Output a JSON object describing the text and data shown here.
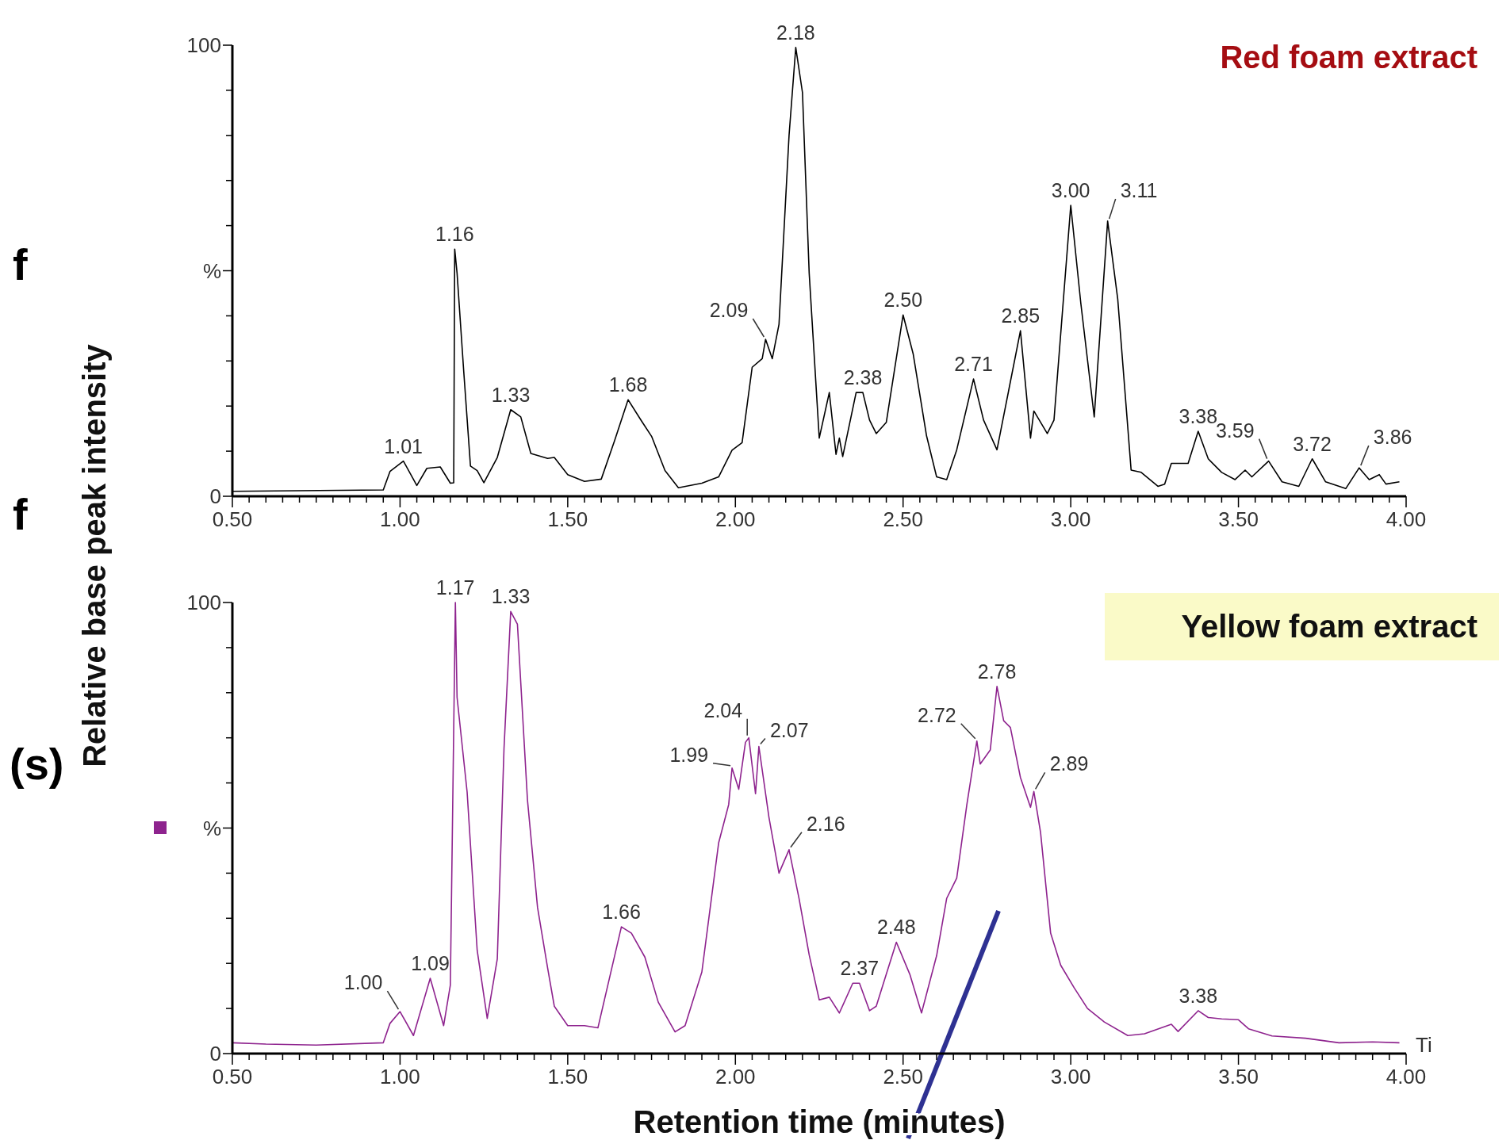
{
  "chart_data": [
    {
      "type": "line",
      "title": "Red foam extract",
      "ylabel": "Relative base peak intensity",
      "series": [
        {
          "color": "#000000",
          "x": [
            0.5,
            0.95,
            0.97,
            1.01,
            1.05,
            1.08,
            1.12,
            1.15,
            1.16,
            1.163,
            1.17,
            1.19,
            1.21,
            1.23,
            1.25,
            1.29,
            1.33,
            1.36,
            1.39,
            1.44,
            1.46,
            1.5,
            1.55,
            1.6,
            1.64,
            1.68,
            1.72,
            1.75,
            1.79,
            1.83,
            1.9,
            1.95,
            1.99,
            2.02,
            2.05,
            2.08,
            2.09,
            2.11,
            2.13,
            2.16,
            2.18,
            2.2,
            2.22,
            2.25,
            2.28,
            2.3,
            2.31,
            2.32,
            2.36,
            2.38,
            2.4,
            2.42,
            2.45,
            2.5,
            2.53,
            2.57,
            2.6,
            2.63,
            2.66,
            2.71,
            2.74,
            2.78,
            2.85,
            2.88,
            2.89,
            2.93,
            2.95,
            3.0,
            3.03,
            3.07,
            3.11,
            3.14,
            3.18,
            3.21,
            3.26,
            3.28,
            3.3,
            3.35,
            3.38,
            3.41,
            3.45,
            3.49,
            3.52,
            3.54,
            3.59,
            3.63,
            3.68,
            3.72,
            3.76,
            3.82,
            3.86,
            3.89,
            3.92,
            3.94,
            3.98
          ],
          "values": [
            1.1,
            1.4,
            5.5,
            7.8,
            2.4,
            6.2,
            6.5,
            2.9,
            3,
            54.8,
            49.5,
            27.6,
            6.7,
            5.7,
            3,
            8.6,
            19.2,
            17.6,
            9.5,
            8.4,
            8.6,
            4.8,
            3.3,
            3.8,
            12.4,
            21.4,
            16.7,
            13.3,
            5.7,
            1.9,
            2.9,
            4.3,
            10.2,
            11.9,
            28.6,
            30.5,
            34.8,
            30.5,
            38.1,
            80,
            99.5,
            89.5,
            49.5,
            12.9,
            23,
            9.3,
            12.9,
            8.8,
            23,
            23,
            16.9,
            13.9,
            16.4,
            40.2,
            31.6,
            13.4,
            4.3,
            3.7,
            10.3,
            26,
            16.9,
            10.3,
            36.7,
            12.9,
            18.9,
            13.9,
            16.9,
            64.5,
            42.8,
            17.6,
            61,
            43.8,
            5.8,
            5.3,
            2.2,
            2.7,
            7.3,
            7.3,
            14.4,
            8.3,
            5.3,
            3.7,
            5.8,
            4.3,
            7.8,
            3.2,
            2.2,
            8.3,
            3.2,
            1.7,
            6.3,
            3.7,
            4.8,
            2.7,
            3.2
          ]
        }
      ],
      "xlim": [
        0.5,
        4.0
      ],
      "ylim": [
        0,
        100
      ],
      "xticks": [
        {
          "value": 0.5,
          "label": "0.50"
        },
        {
          "value": 0.55,
          "label": null
        },
        {
          "value": 0.6,
          "label": null
        },
        {
          "value": 0.65,
          "label": null
        },
        {
          "value": 0.7,
          "label": null
        },
        {
          "value": 0.75,
          "label": null
        },
        {
          "value": 0.8,
          "label": null
        },
        {
          "value": 0.85,
          "label": null
        },
        {
          "value": 0.9,
          "label": null
        },
        {
          "value": 0.95,
          "label": null
        },
        {
          "value": 1.0,
          "label": "1.00"
        },
        {
          "value": 1.05,
          "label": null
        },
        {
          "value": 1.1,
          "label": null
        },
        {
          "value": 1.15,
          "label": null
        },
        {
          "value": 1.2,
          "label": null
        },
        {
          "value": 1.25,
          "label": null
        },
        {
          "value": 1.3,
          "label": null
        },
        {
          "value": 1.35,
          "label": null
        },
        {
          "value": 1.4,
          "label": null
        },
        {
          "value": 1.45,
          "label": null
        },
        {
          "value": 1.5,
          "label": "1.50"
        },
        {
          "value": 1.55,
          "label": null
        },
        {
          "value": 1.6,
          "label": null
        },
        {
          "value": 1.65,
          "label": null
        },
        {
          "value": 1.7,
          "label": null
        },
        {
          "value": 1.75,
          "label": null
        },
        {
          "value": 1.8,
          "label": null
        },
        {
          "value": 1.85,
          "label": null
        },
        {
          "value": 1.9,
          "label": null
        },
        {
          "value": 1.95,
          "label": null
        },
        {
          "value": 2.0,
          "label": "2.00"
        },
        {
          "value": 2.05,
          "label": null
        },
        {
          "value": 2.1,
          "label": null
        },
        {
          "value": 2.15,
          "label": null
        },
        {
          "value": 2.2,
          "label": null
        },
        {
          "value": 2.25,
          "label": null
        },
        {
          "value": 2.3,
          "label": null
        },
        {
          "value": 2.35,
          "label": null
        },
        {
          "value": 2.4,
          "label": null
        },
        {
          "value": 2.45,
          "label": null
        },
        {
          "value": 2.5,
          "label": "2.50"
        },
        {
          "value": 2.55,
          "label": null
        },
        {
          "value": 2.6,
          "label": null
        },
        {
          "value": 2.65,
          "label": null
        },
        {
          "value": 2.7,
          "label": null
        },
        {
          "value": 2.75,
          "label": null
        },
        {
          "value": 2.8,
          "label": null
        },
        {
          "value": 2.85,
          "label": null
        },
        {
          "value": 2.9,
          "label": null
        },
        {
          "value": 2.95,
          "label": null
        },
        {
          "value": 3.0,
          "label": "3.00"
        },
        {
          "value": 3.05,
          "label": null
        },
        {
          "value": 3.1,
          "label": null
        },
        {
          "value": 3.15,
          "label": null
        },
        {
          "value": 3.2,
          "label": null
        },
        {
          "value": 3.25,
          "label": null
        },
        {
          "value": 3.3,
          "label": null
        },
        {
          "value": 3.35,
          "label": null
        },
        {
          "value": 3.4,
          "label": null
        },
        {
          "value": 3.45,
          "label": null
        },
        {
          "value": 3.5,
          "label": "3.50"
        },
        {
          "value": 3.55,
          "label": null
        },
        {
          "value": 3.6,
          "label": null
        },
        {
          "value": 3.65,
          "label": null
        },
        {
          "value": 3.7,
          "label": null
        },
        {
          "value": 3.75,
          "label": null
        },
        {
          "value": 3.8,
          "label": null
        },
        {
          "value": 3.85,
          "label": null
        },
        {
          "value": 3.9,
          "label": null
        },
        {
          "value": 3.95,
          "label": null
        },
        {
          "value": 4.0,
          "label": "4.00"
        }
      ],
      "yticks": [
        {
          "value": 0,
          "label": "0"
        },
        {
          "value": 10,
          "label": null
        },
        {
          "value": 20,
          "label": null
        },
        {
          "value": 30,
          "label": null
        },
        {
          "value": 40,
          "label": null
        },
        {
          "value": 50,
          "label": "%"
        },
        {
          "value": 60,
          "label": null
        },
        {
          "value": 70,
          "label": null
        },
        {
          "value": 80,
          "label": null
        },
        {
          "value": 90,
          "label": null
        },
        {
          "value": 100,
          "label": "100"
        }
      ],
      "grid": false,
      "marker": "none",
      "line_style": "solid",
      "annotations": [
        {
          "text": "1.01",
          "x": 1.01,
          "y": 7.8
        },
        {
          "text": "1.16",
          "x": 1.163,
          "y": 54.8
        },
        {
          "text": "1.33",
          "x": 1.33,
          "y": 19.2
        },
        {
          "text": "1.68",
          "x": 1.68,
          "y": 21.4
        },
        {
          "text": "2.09",
          "x": 2.09,
          "y": 34.8
        },
        {
          "text": "2.18",
          "x": 2.18,
          "y": 99.5
        },
        {
          "text": "2.38",
          "x": 2.38,
          "y": 23
        },
        {
          "text": "2.50",
          "x": 2.5,
          "y": 40.2
        },
        {
          "text": "2.71",
          "x": 2.71,
          "y": 26
        },
        {
          "text": "2.85",
          "x": 2.85,
          "y": 36.7
        },
        {
          "text": "3.00",
          "x": 3.0,
          "y": 64.5
        },
        {
          "text": "3.11",
          "x": 3.11,
          "y": 61
        },
        {
          "text": "3.38",
          "x": 3.38,
          "y": 14.4
        },
        {
          "text": "3.59",
          "x": 3.59,
          "y": 7.8
        },
        {
          "text": "3.72",
          "x": 3.72,
          "y": 8.3
        },
        {
          "text": "3.86",
          "x": 3.86,
          "y": 6.3
        },
        "f",
        "f",
        "(s)"
      ]
    },
    {
      "type": "line",
      "title": "Yellow foam extract",
      "xlabel": "Retention time (minutes)",
      "series": [
        {
          "color": "#8e238e",
          "x": [
            0.5,
            0.6,
            0.75,
            0.95,
            0.97,
            1.0,
            1.04,
            1.09,
            1.13,
            1.15,
            1.165,
            1.17,
            1.2,
            1.23,
            1.26,
            1.29,
            1.31,
            1.33,
            1.35,
            1.38,
            1.41,
            1.44,
            1.46,
            1.5,
            1.55,
            1.59,
            1.66,
            1.69,
            1.73,
            1.77,
            1.82,
            1.85,
            1.9,
            1.95,
            1.98,
            1.99,
            2.01,
            2.03,
            2.04,
            2.06,
            2.07,
            2.1,
            2.13,
            2.16,
            2.19,
            2.22,
            2.25,
            2.28,
            2.31,
            2.35,
            2.37,
            2.4,
            2.42,
            2.45,
            2.48,
            2.52,
            2.555,
            2.6,
            2.63,
            2.66,
            2.69,
            2.72,
            2.73,
            2.76,
            2.78,
            2.8,
            2.82,
            2.85,
            2.88,
            2.89,
            2.91,
            2.94,
            2.97,
            3.01,
            3.05,
            3.1,
            3.17,
            3.22,
            3.3,
            3.32,
            3.38,
            3.41,
            3.45,
            3.5,
            3.53,
            3.6,
            3.7,
            3.8,
            3.9,
            3.98
          ],
          "values": [
            2.4,
            2.1,
            1.9,
            2.4,
            6.7,
            9.3,
            4,
            16.7,
            6.2,
            15.2,
            100,
            79,
            58,
            22.9,
            7.8,
            21,
            67.6,
            98,
            95.2,
            56.2,
            32.4,
            19,
            10.5,
            6.2,
            6.2,
            5.7,
            28.1,
            26.7,
            21.4,
            11.4,
            4.8,
            6.2,
            18.1,
            46.7,
            55.2,
            63.3,
            58.6,
            69,
            70,
            57.6,
            68.1,
            52.4,
            40,
            45.2,
            34.3,
            21.9,
            11.9,
            12.5,
            9,
            15.6,
            15.6,
            9.5,
            10.5,
            17.6,
            24.7,
            17.6,
            9,
            21.7,
            34.4,
            38.9,
            55.1,
            69.3,
            64.2,
            67.3,
            81.4,
            73.8,
            72.3,
            61.2,
            54.6,
            58.1,
            49,
            26.7,
            19.6,
            14.6,
            10,
            7,
            4,
            4.4,
            6.5,
            4.9,
            9.5,
            8,
            7.7,
            7.5,
            5.5,
            3.9,
            3.4,
            2.4,
            2.6,
            2.4
          ]
        }
      ],
      "xlim": [
        0.5,
        4.0
      ],
      "ylim": [
        0,
        100
      ],
      "xticks": [
        {
          "value": 0.5,
          "label": "0.50"
        },
        {
          "value": 0.55,
          "label": null
        },
        {
          "value": 0.6,
          "label": null
        },
        {
          "value": 0.65,
          "label": null
        },
        {
          "value": 0.7,
          "label": null
        },
        {
          "value": 0.75,
          "label": null
        },
        {
          "value": 0.8,
          "label": null
        },
        {
          "value": 0.85,
          "label": null
        },
        {
          "value": 0.9,
          "label": null
        },
        {
          "value": 0.95,
          "label": null
        },
        {
          "value": 1.0,
          "label": "1.00"
        },
        {
          "value": 1.05,
          "label": null
        },
        {
          "value": 1.1,
          "label": null
        },
        {
          "value": 1.15,
          "label": null
        },
        {
          "value": 1.2,
          "label": null
        },
        {
          "value": 1.25,
          "label": null
        },
        {
          "value": 1.3,
          "label": null
        },
        {
          "value": 1.35,
          "label": null
        },
        {
          "value": 1.4,
          "label": null
        },
        {
          "value": 1.45,
          "label": null
        },
        {
          "value": 1.5,
          "label": "1.50"
        },
        {
          "value": 1.55,
          "label": null
        },
        {
          "value": 1.6,
          "label": null
        },
        {
          "value": 1.65,
          "label": null
        },
        {
          "value": 1.7,
          "label": null
        },
        {
          "value": 1.75,
          "label": null
        },
        {
          "value": 1.8,
          "label": null
        },
        {
          "value": 1.85,
          "label": null
        },
        {
          "value": 1.9,
          "label": null
        },
        {
          "value": 1.95,
          "label": null
        },
        {
          "value": 2.0,
          "label": "2.00"
        },
        {
          "value": 2.05,
          "label": null
        },
        {
          "value": 2.1,
          "label": null
        },
        {
          "value": 2.15,
          "label": null
        },
        {
          "value": 2.2,
          "label": null
        },
        {
          "value": 2.25,
          "label": null
        },
        {
          "value": 2.3,
          "label": null
        },
        {
          "value": 2.35,
          "label": null
        },
        {
          "value": 2.4,
          "label": null
        },
        {
          "value": 2.45,
          "label": null
        },
        {
          "value": 2.5,
          "label": "2.50"
        },
        {
          "value": 2.55,
          "label": null
        },
        {
          "value": 2.6,
          "label": null
        },
        {
          "value": 2.65,
          "label": null
        },
        {
          "value": 2.7,
          "label": null
        },
        {
          "value": 2.75,
          "label": null
        },
        {
          "value": 2.8,
          "label": null
        },
        {
          "value": 2.85,
          "label": null
        },
        {
          "value": 2.9,
          "label": null
        },
        {
          "value": 2.95,
          "label": null
        },
        {
          "value": 3.0,
          "label": "3.00"
        },
        {
          "value": 3.05,
          "label": null
        },
        {
          "value": 3.1,
          "label": null
        },
        {
          "value": 3.15,
          "label": null
        },
        {
          "value": 3.2,
          "label": null
        },
        {
          "value": 3.25,
          "label": null
        },
        {
          "value": 3.3,
          "label": null
        },
        {
          "value": 3.35,
          "label": null
        },
        {
          "value": 3.4,
          "label": null
        },
        {
          "value": 3.45,
          "label": null
        },
        {
          "value": 3.5,
          "label": "3.50"
        },
        {
          "value": 3.55,
          "label": null
        },
        {
          "value": 3.6,
          "label": null
        },
        {
          "value": 3.65,
          "label": null
        },
        {
          "value": 3.7,
          "label": null
        },
        {
          "value": 3.75,
          "label": null
        },
        {
          "value": 3.8,
          "label": null
        },
        {
          "value": 3.85,
          "label": null
        },
        {
          "value": 3.9,
          "label": null
        },
        {
          "value": 3.95,
          "label": null
        },
        {
          "value": 4.0,
          "label": "4.00"
        }
      ],
      "yticks": [
        {
          "value": 0,
          "label": "0"
        },
        {
          "value": 10,
          "label": null
        },
        {
          "value": 20,
          "label": null
        },
        {
          "value": 30,
          "label": null
        },
        {
          "value": 40,
          "label": null
        },
        {
          "value": 50,
          "label": "%"
        },
        {
          "value": 60,
          "label": null
        },
        {
          "value": 70,
          "label": null
        },
        {
          "value": 80,
          "label": null
        },
        {
          "value": 90,
          "label": null
        },
        {
          "value": 100,
          "label": "100"
        }
      ],
      "grid": false,
      "marker": "none",
      "line_style": "solid",
      "annotations": [
        {
          "text": "1.00",
          "x": 1.0,
          "y": 9.3
        },
        {
          "text": "1.09",
          "x": 1.09,
          "y": 16.7
        },
        {
          "text": "1.17",
          "x": 1.165,
          "y": 100
        },
        {
          "text": "1.33",
          "x": 1.33,
          "y": 98
        },
        {
          "text": "1.66",
          "x": 1.66,
          "y": 28.1
        },
        {
          "text": "1.99",
          "x": 1.99,
          "y": 63.3
        },
        {
          "text": "2.04",
          "x": 2.04,
          "y": 70
        },
        {
          "text": "2.07",
          "x": 2.07,
          "y": 68.1
        },
        {
          "text": "2.16",
          "x": 2.16,
          "y": 45.2
        },
        {
          "text": "2.37",
          "x": 2.37,
          "y": 15.6
        },
        {
          "text": "2.48",
          "x": 2.48,
          "y": 24.7
        },
        {
          "text": "2.72",
          "x": 2.72,
          "y": 69.3
        },
        {
          "text": "2.78",
          "x": 2.78,
          "y": 81.4
        },
        {
          "text": "2.89",
          "x": 2.89,
          "y": 58.1
        },
        {
          "text": "3.38",
          "x": 3.38,
          "y": 9.5
        },
        "Ti"
      ]
    }
  ]
}
